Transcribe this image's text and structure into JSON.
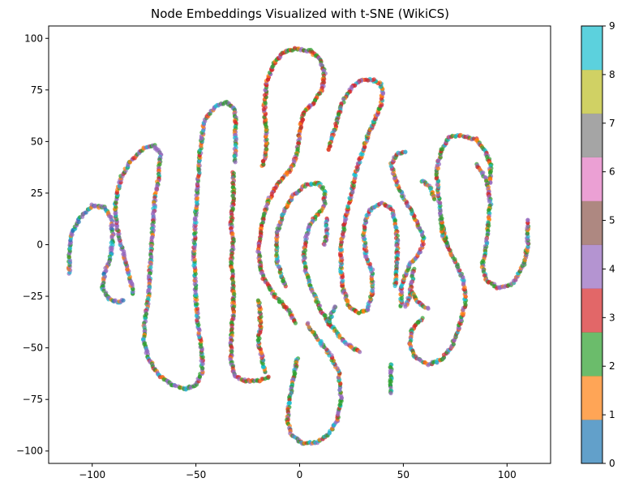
{
  "chart_data": {
    "type": "scatter",
    "title": "Node Embeddings Visualized with t-SNE (WikiCS)",
    "xlabel": "",
    "ylabel": "",
    "xlim": [
      -121,
      121
    ],
    "ylim": [
      -106,
      106
    ],
    "x_ticks": [
      -100,
      -50,
      0,
      50,
      100
    ],
    "x_tick_labels": [
      "−100",
      "−50",
      "0",
      "50",
      "100"
    ],
    "y_ticks": [
      -100,
      -75,
      -50,
      -25,
      0,
      25,
      50,
      75,
      100
    ],
    "y_tick_labels": [
      "−100",
      "−75",
      "−50",
      "−25",
      "0",
      "25",
      "50",
      "75",
      "100"
    ],
    "grid": false,
    "legend": "none",
    "colorbar": {
      "range": [
        0,
        9
      ],
      "ticks": [
        0,
        1,
        2,
        3,
        4,
        5,
        6,
        7,
        8,
        9
      ],
      "tick_labels": [
        "0",
        "1",
        "2",
        "3",
        "4",
        "5",
        "6",
        "7",
        "8",
        "9"
      ],
      "colors": [
        "#1f77b4",
        "#ff7f0e",
        "#2ca02c",
        "#d62728",
        "#9467bd",
        "#8c564b",
        "#e377c2",
        "#7f7f7f",
        "#bcbd22",
        "#17becf"
      ],
      "alpha": 0.7
    },
    "marker_alpha": 0.7,
    "curves": [
      {
        "class_pattern": [
          0,
          4,
          2,
          9,
          4,
          1,
          4,
          2,
          4
        ],
        "points": [
          [
            -111,
            -14
          ],
          [
            -111,
            -5
          ],
          [
            -110,
            5
          ],
          [
            -106,
            13
          ],
          [
            -100,
            19
          ],
          [
            -94,
            18
          ],
          [
            -91,
            13
          ],
          [
            -90,
            5
          ],
          [
            -91,
            -5
          ],
          [
            -94,
            -14
          ],
          [
            -95,
            -21
          ],
          [
            -92,
            -26
          ],
          [
            -87,
            -28
          ],
          [
            -85,
            -27
          ]
        ]
      },
      {
        "class_pattern": [
          4,
          2,
          9,
          4,
          3,
          4,
          2,
          1
        ],
        "points": [
          [
            -80,
            -24
          ],
          [
            -82,
            -16
          ],
          [
            -85,
            -4
          ],
          [
            -88,
            8
          ],
          [
            -89,
            20
          ],
          [
            -86,
            33
          ],
          [
            -81,
            41
          ],
          [
            -75,
            47
          ],
          [
            -70,
            48
          ],
          [
            -67,
            44
          ],
          [
            -68,
            33
          ],
          [
            -70,
            20
          ],
          [
            -71,
            5
          ],
          [
            -72,
            -10
          ],
          [
            -73,
            -26
          ],
          [
            -75,
            -40
          ],
          [
            -75,
            -47
          ],
          [
            -73,
            -55
          ],
          [
            -68,
            -63
          ],
          [
            -61,
            -68
          ],
          [
            -55,
            -70
          ]
        ]
      },
      {
        "class_pattern": [
          4,
          2,
          9,
          4,
          2,
          4,
          1,
          3
        ],
        "points": [
          [
            -55,
            -70
          ],
          [
            -50,
            -68
          ],
          [
            -47,
            -62
          ],
          [
            -47,
            -52
          ],
          [
            -49,
            -40
          ],
          [
            -50,
            -25
          ],
          [
            -51,
            -5
          ],
          [
            -50,
            15
          ],
          [
            -49,
            30
          ],
          [
            -48,
            45
          ],
          [
            -46,
            60
          ],
          [
            -41,
            67
          ],
          [
            -35,
            69
          ],
          [
            -31,
            65
          ],
          [
            -31,
            52
          ],
          [
            -31,
            40
          ]
        ]
      },
      {
        "class_pattern": [
          3,
          2,
          4,
          3,
          2,
          3,
          1,
          4,
          2
        ],
        "points": [
          [
            -32,
            35
          ],
          [
            -32,
            22
          ],
          [
            -33,
            10
          ],
          [
            -32,
            0
          ],
          [
            -33,
            -8
          ],
          [
            -32,
            -20
          ],
          [
            -32,
            -32
          ],
          [
            -33,
            -45
          ],
          [
            -33,
            -57
          ],
          [
            -31,
            -64
          ],
          [
            -26,
            -66
          ],
          [
            -20,
            -66
          ],
          [
            -15,
            -64
          ]
        ]
      },
      {
        "class_pattern": [
          2,
          3,
          4,
          2,
          1,
          3,
          9
        ],
        "points": [
          [
            -17,
            -62
          ],
          [
            -18,
            -55
          ],
          [
            -20,
            -47
          ],
          [
            -19,
            -40
          ],
          [
            -19,
            -32
          ],
          [
            -20,
            -27
          ]
        ]
      },
      {
        "class_pattern": [
          2,
          3,
          1,
          4,
          2,
          3
        ],
        "points": [
          [
            -18,
            38
          ],
          [
            -16,
            45
          ],
          [
            -16,
            55
          ],
          [
            -17,
            67
          ],
          [
            -16,
            78
          ],
          [
            -13,
            87
          ],
          [
            -8,
            93
          ],
          [
            -2,
            95
          ],
          [
            5,
            94
          ],
          [
            10,
            90
          ],
          [
            12,
            83
          ],
          [
            11,
            76
          ],
          [
            7,
            69
          ],
          [
            2,
            64
          ],
          [
            0,
            55
          ],
          [
            -1,
            45
          ],
          [
            -4,
            37
          ],
          [
            -10,
            30
          ],
          [
            -15,
            22
          ],
          [
            -18,
            10
          ],
          [
            -20,
            -3
          ],
          [
            -18,
            -15
          ],
          [
            -12,
            -25
          ],
          [
            -5,
            -32
          ],
          [
            -2,
            -38
          ]
        ]
      },
      {
        "class_pattern": [
          4,
          2,
          3,
          9,
          4,
          2,
          1
        ],
        "points": [
          [
            -1,
            -55
          ],
          [
            -3,
            -65
          ],
          [
            -5,
            -75
          ],
          [
            -6,
            -85
          ],
          [
            -4,
            -92
          ],
          [
            1,
            -96
          ],
          [
            8,
            -96
          ],
          [
            14,
            -92
          ],
          [
            18,
            -85
          ],
          [
            20,
            -75
          ],
          [
            19,
            -62
          ],
          [
            15,
            -54
          ],
          [
            10,
            -47
          ],
          [
            5,
            -41
          ],
          [
            4,
            -38
          ]
        ]
      },
      {
        "class_pattern": [
          4,
          2,
          3,
          4,
          9,
          1,
          2
        ],
        "points": [
          [
            -7,
            -20
          ],
          [
            -11,
            -8
          ],
          [
            -11,
            5
          ],
          [
            -8,
            15
          ],
          [
            -3,
            24
          ],
          [
            3,
            29
          ],
          [
            9,
            30
          ],
          [
            12,
            26
          ],
          [
            12,
            19
          ],
          [
            9,
            15
          ],
          [
            5,
            10
          ],
          [
            3,
            3
          ],
          [
            2,
            -5
          ],
          [
            3,
            -13
          ],
          [
            6,
            -22
          ],
          [
            10,
            -31
          ],
          [
            14,
            -38
          ],
          [
            19,
            -44
          ],
          [
            24,
            -49
          ],
          [
            29,
            -52
          ]
        ]
      },
      {
        "class_pattern": [
          4,
          3,
          2,
          9,
          4,
          2
        ],
        "points": [
          [
            14,
            -39
          ],
          [
            15,
            -35
          ],
          [
            17,
            -30
          ]
        ]
      },
      {
        "class_pattern": [
          3,
          1,
          2,
          4,
          9,
          3
        ],
        "points": [
          [
            21,
            -22
          ],
          [
            20,
            -12
          ],
          [
            20,
            0
          ],
          [
            22,
            12
          ],
          [
            25,
            25
          ],
          [
            27,
            35
          ],
          [
            30,
            44
          ],
          [
            33,
            53
          ],
          [
            36,
            60
          ],
          [
            39,
            67
          ],
          [
            40,
            73
          ],
          [
            39,
            78
          ],
          [
            35,
            80
          ],
          [
            30,
            80
          ],
          [
            25,
            76
          ],
          [
            21,
            70
          ],
          [
            18,
            60
          ],
          [
            15,
            50
          ],
          [
            14,
            46
          ]
        ]
      },
      {
        "class_pattern": [
          4,
          2,
          3,
          9,
          4
        ],
        "points": [
          [
            13,
            13
          ],
          [
            13,
            5
          ],
          [
            12,
            0
          ]
        ]
      },
      {
        "class_pattern": [
          9,
          4,
          2,
          3,
          4,
          1
        ],
        "points": [
          [
            21,
            -22
          ],
          [
            24,
            -30
          ],
          [
            29,
            -33
          ],
          [
            33,
            -31
          ],
          [
            35,
            -23
          ],
          [
            35,
            -13
          ],
          [
            32,
            -5
          ],
          [
            31,
            5
          ],
          [
            32,
            13
          ],
          [
            35,
            18
          ],
          [
            40,
            20
          ],
          [
            44,
            18
          ],
          [
            46,
            12
          ],
          [
            47,
            4
          ],
          [
            47,
            -8
          ],
          [
            46,
            -20
          ]
        ]
      },
      {
        "class_pattern": [
          4,
          2,
          4,
          9,
          2
        ],
        "points": [
          [
            44,
            -58
          ],
          [
            44,
            -65
          ],
          [
            44,
            -72
          ]
        ]
      },
      {
        "class_pattern": [
          9,
          4,
          2,
          3,
          4,
          1
        ],
        "points": [
          [
            49,
            -30
          ],
          [
            49,
            -20
          ],
          [
            53,
            -10
          ],
          [
            58,
            -4
          ],
          [
            60,
            3
          ],
          [
            57,
            10
          ],
          [
            53,
            18
          ],
          [
            49,
            25
          ],
          [
            46,
            32
          ],
          [
            44,
            39
          ],
          [
            47,
            44
          ],
          [
            51,
            45
          ]
        ]
      },
      {
        "class_pattern": [
          4,
          2,
          9,
          3,
          1,
          4
        ],
        "points": [
          [
            55,
            -12
          ],
          [
            53,
            -25
          ],
          [
            51,
            -30
          ]
        ]
      },
      {
        "class_pattern": [
          4,
          2,
          3,
          1,
          9
        ],
        "points": [
          [
            54,
            -23
          ],
          [
            57,
            -28
          ],
          [
            62,
            -31
          ]
        ]
      },
      {
        "class_pattern": [
          2,
          9,
          4,
          1,
          3
        ],
        "points": [
          [
            59,
            31
          ],
          [
            63,
            28
          ],
          [
            65,
            22
          ]
        ]
      },
      {
        "class_pattern": [
          9,
          2,
          4,
          3,
          1
        ],
        "points": [
          [
            68,
            12
          ],
          [
            70,
            5
          ],
          [
            71,
            0
          ]
        ]
      },
      {
        "class_pattern": [
          4,
          2,
          9,
          3,
          4,
          1,
          2
        ],
        "points": [
          [
            59,
            -36
          ],
          [
            54,
            -41
          ],
          [
            53,
            -48
          ],
          [
            56,
            -55
          ],
          [
            62,
            -58
          ],
          [
            68,
            -56
          ],
          [
            73,
            -50
          ],
          [
            77,
            -40
          ],
          [
            80,
            -28
          ],
          [
            79,
            -18
          ],
          [
            76,
            -10
          ],
          [
            72,
            -2
          ],
          [
            69,
            5
          ],
          [
            68,
            15
          ],
          [
            67,
            25
          ],
          [
            66,
            35
          ],
          [
            68,
            45
          ],
          [
            72,
            52
          ],
          [
            78,
            53
          ],
          [
            85,
            51
          ],
          [
            89,
            46
          ],
          [
            92,
            39
          ],
          [
            92,
            30
          ]
        ]
      },
      {
        "class_pattern": [
          4,
          2,
          9,
          4,
          3,
          2,
          4,
          1
        ],
        "points": [
          [
            85,
            39
          ],
          [
            90,
            32
          ],
          [
            92,
            20
          ],
          [
            91,
            10
          ],
          [
            90,
            0
          ],
          [
            88,
            -10
          ],
          [
            90,
            -17
          ],
          [
            96,
            -21
          ],
          [
            103,
            -19
          ],
          [
            108,
            -10
          ],
          [
            110,
            0
          ],
          [
            110,
            12
          ]
        ]
      }
    ]
  }
}
